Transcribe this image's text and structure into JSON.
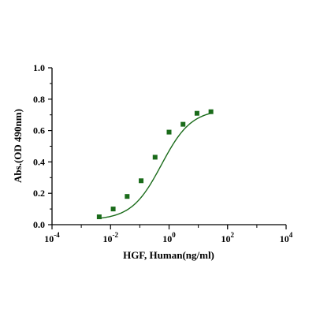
{
  "chart_data": {
    "type": "scatter",
    "title": "",
    "xlabel": "HGF, Human(ng/ml)",
    "ylabel": "Abs.(OD 490nm)",
    "x_scale": "log",
    "xlim": [
      0.0001,
      10000
    ],
    "ylim": [
      0.0,
      1.0
    ],
    "x_ticks": [
      {
        "value": 0.0001,
        "base": "10",
        "exp": "-4"
      },
      {
        "value": 0.01,
        "base": "10",
        "exp": "-2"
      },
      {
        "value": 1,
        "base": "10",
        "exp": "0"
      },
      {
        "value": 100,
        "base": "10",
        "exp": "2"
      },
      {
        "value": 10000,
        "base": "10",
        "exp": "4"
      }
    ],
    "y_ticks": [
      {
        "value": 0.0,
        "label": "0.0"
      },
      {
        "value": 0.2,
        "label": "0.2"
      },
      {
        "value": 0.4,
        "label": "0.4"
      },
      {
        "value": 0.6,
        "label": "0.6"
      },
      {
        "value": 0.8,
        "label": "0.8"
      },
      {
        "value": 1.0,
        "label": "1.0"
      }
    ],
    "grid": false,
    "series": [
      {
        "color": "#1a6b1a",
        "marker": "square",
        "fit": "4PL sigmoid",
        "points": [
          {
            "x": 0.0041,
            "y": 0.05
          },
          {
            "x": 0.0123,
            "y": 0.1
          },
          {
            "x": 0.037,
            "y": 0.18
          },
          {
            "x": 0.111,
            "y": 0.28
          },
          {
            "x": 0.333,
            "y": 0.43
          },
          {
            "x": 1.0,
            "y": 0.59
          },
          {
            "x": 3.0,
            "y": 0.64
          },
          {
            "x": 9.0,
            "y": 0.71
          },
          {
            "x": 27.0,
            "y": 0.72
          }
        ]
      }
    ]
  }
}
